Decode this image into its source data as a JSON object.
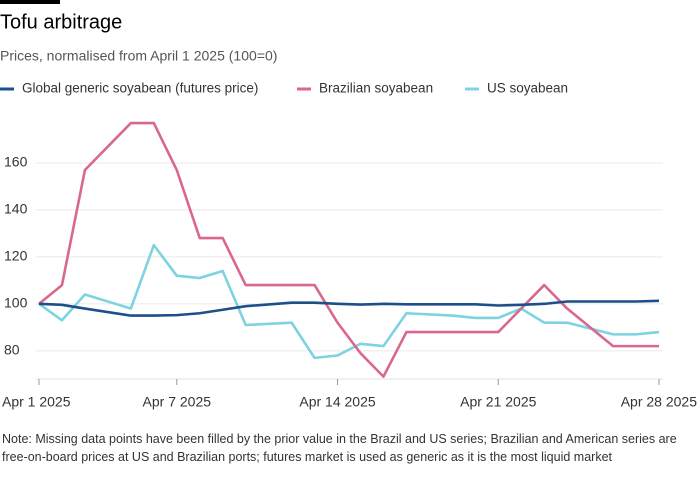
{
  "chart_data": {
    "type": "line",
    "title": "Tofu arbitrage",
    "subtitle": "Prices, normalised from April 1 2025 (100=0)",
    "note": "Note: Missing data points have been filled by the prior value in the Brazil and US series; Brazilian and American series are free-on-board prices at US and Brazilian ports; futures market is used as generic as it is the most liquid market",
    "x": [
      "2025-04-01",
      "2025-04-02",
      "2025-04-03",
      "2025-04-05",
      "2025-04-06",
      "2025-04-07",
      "2025-04-08",
      "2025-04-09",
      "2025-04-10",
      "2025-04-12",
      "2025-04-13",
      "2025-04-14",
      "2025-04-15",
      "2025-04-16",
      "2025-04-17",
      "2025-04-19",
      "2025-04-20",
      "2025-04-21",
      "2025-04-22",
      "2025-04-23",
      "2025-04-24",
      "2025-04-26",
      "2025-04-27",
      "2025-04-28"
    ],
    "series": [
      {
        "name": "Global generic soyabean (futures price)",
        "color": "#1d4f8a",
        "values": [
          100,
          99.6,
          98,
          95,
          95,
          95.2,
          96,
          97.5,
          99,
          100.5,
          100.5,
          100,
          99.7,
          100,
          99.8,
          99.8,
          99.8,
          99.3,
          99.6,
          100,
          101,
          101,
          101,
          101.3
        ]
      },
      {
        "name": "Brazilian soyabean",
        "color": "#d9678f",
        "values": [
          100,
          108,
          157,
          177,
          177,
          157,
          128,
          128,
          108,
          108,
          108,
          92,
          79,
          69,
          88,
          88,
          88,
          88,
          98,
          108,
          98,
          82,
          82,
          82
        ]
      },
      {
        "name": "US soyabean",
        "color": "#7dd3e0",
        "values": [
          100,
          93,
          104,
          98,
          125,
          112,
          111,
          114,
          91,
          92,
          77,
          78,
          83,
          82,
          96,
          95,
          94,
          94,
          98,
          92,
          92,
          87,
          87,
          88
        ]
      }
    ],
    "xlim": [
      "2025-04-01",
      "2025-04-28"
    ],
    "xticks": [
      {
        "value": "2025-04-01",
        "label": "Apr 1 2025"
      },
      {
        "value": "2025-04-07",
        "label": "Apr 7 2025"
      },
      {
        "value": "2025-04-14",
        "label": "Apr 14 2025"
      },
      {
        "value": "2025-04-21",
        "label": "Apr 21 2025"
      },
      {
        "value": "2025-04-28",
        "label": "Apr 28 2025"
      }
    ],
    "ylim": [
      68,
      180
    ],
    "yticks": [
      80,
      100,
      120,
      140,
      160
    ],
    "grid": true
  }
}
